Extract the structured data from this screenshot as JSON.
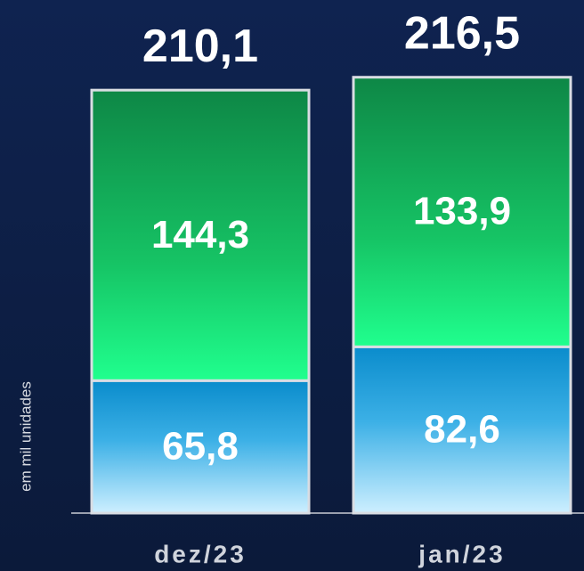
{
  "chart_data": {
    "type": "stacked_bar",
    "categories": [
      "dez/23",
      "jan/23"
    ],
    "y_label": "em mil unidades",
    "series": [
      {
        "color": "#0a8fcf",
        "values": [
          65.8,
          82.6
        ],
        "value_labels": [
          "65,8",
          "82,6"
        ]
      },
      {
        "color": "#12b35e",
        "values": [
          144.3,
          133.9
        ],
        "value_labels": [
          "144,3",
          "133,9"
        ]
      }
    ],
    "totals": [
      210.1,
      216.5
    ],
    "total_labels": [
      "210,1",
      "216,5"
    ],
    "ylim": [
      0,
      250
    ]
  }
}
